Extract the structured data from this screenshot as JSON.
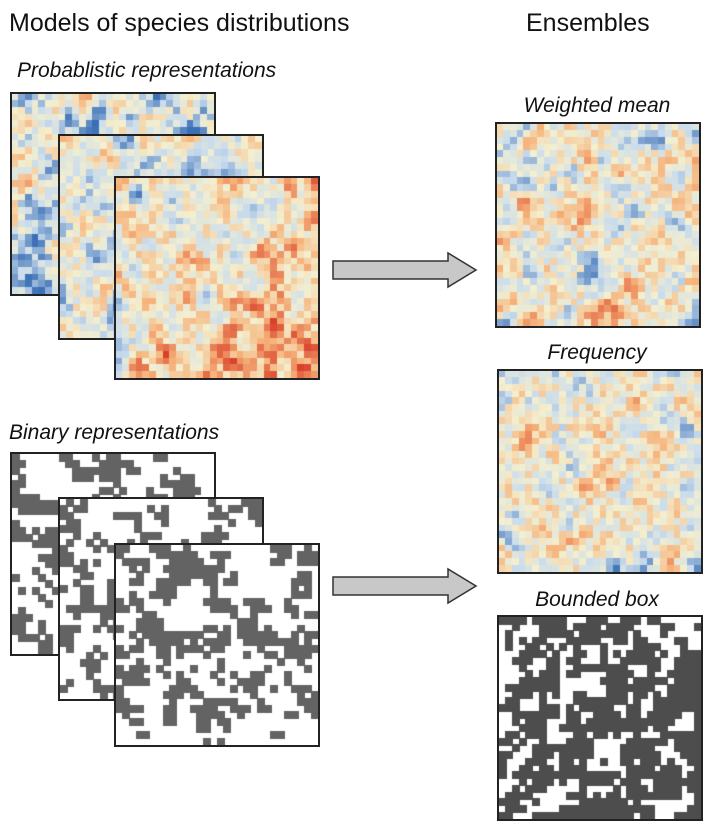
{
  "headings": {
    "left": "Models of species distributions",
    "right": "Ensembles"
  },
  "labels": {
    "probabilistic": "Probablistic representations",
    "binary": "Binary representations",
    "weighted_mean": "Weighted mean",
    "frequency": "Frequency",
    "bounded_box": "Bounded box"
  },
  "colors": {
    "ramp_low": "#3a6fb5",
    "ramp_mid_low": "#c9dced",
    "ramp_mid": "#f4efcf",
    "ramp_mid_high": "#f6b27a",
    "ramp_high": "#d9402a",
    "binary_fill": "#636363",
    "bounded_fill": "#4d4d4d",
    "arrow_fill": "#c8c8c8",
    "frame": "#222222"
  },
  "icons": {
    "arrow_top": "right-arrow-icon",
    "arrow_bottom": "right-arrow-icon"
  }
}
